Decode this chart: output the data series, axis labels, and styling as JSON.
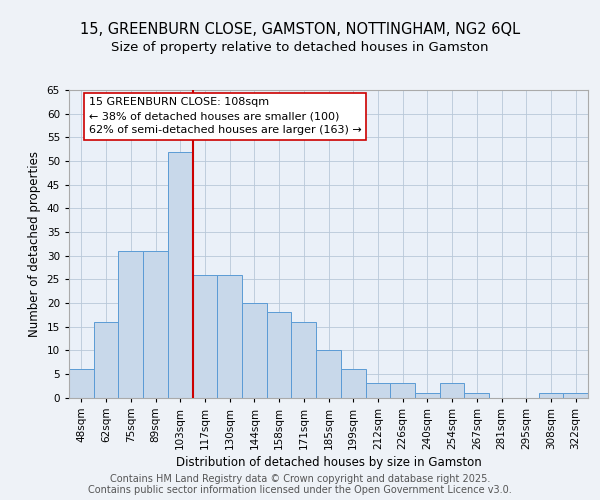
{
  "title": "15, GREENBURN CLOSE, GAMSTON, NOTTINGHAM, NG2 6QL",
  "subtitle": "Size of property relative to detached houses in Gamston",
  "xlabel": "Distribution of detached houses by size in Gamston",
  "ylabel": "Number of detached properties",
  "bins": [
    "48sqm",
    "62sqm",
    "75sqm",
    "89sqm",
    "103sqm",
    "117sqm",
    "130sqm",
    "144sqm",
    "158sqm",
    "171sqm",
    "185sqm",
    "199sqm",
    "212sqm",
    "226sqm",
    "240sqm",
    "254sqm",
    "267sqm",
    "281sqm",
    "295sqm",
    "308sqm",
    "322sqm"
  ],
  "values": [
    6,
    16,
    31,
    31,
    52,
    26,
    26,
    20,
    18,
    16,
    10,
    6,
    3,
    3,
    1,
    3,
    1,
    0,
    0,
    1,
    1
  ],
  "bar_color": "#c8d8ea",
  "bar_edge_color": "#5b9bd5",
  "vline_x_index": 4.5,
  "vline_color": "#cc0000",
  "annotation_text": "15 GREENBURN CLOSE: 108sqm\n← 38% of detached houses are smaller (100)\n62% of semi-detached houses are larger (163) →",
  "annotation_box_edge": "#cc0000",
  "ylim": [
    0,
    65
  ],
  "yticks": [
    0,
    5,
    10,
    15,
    20,
    25,
    30,
    35,
    40,
    45,
    50,
    55,
    60,
    65
  ],
  "footer1": "Contains HM Land Registry data © Crown copyright and database right 2025.",
  "footer2": "Contains public sector information licensed under the Open Government Licence v3.0.",
  "bg_color": "#eef2f7",
  "plot_bg_color": "#eaf0f8",
  "title_fontsize": 10.5,
  "subtitle_fontsize": 9.5,
  "axis_label_fontsize": 8.5,
  "tick_fontsize": 7.5,
  "annotation_fontsize": 8,
  "footer_fontsize": 7
}
